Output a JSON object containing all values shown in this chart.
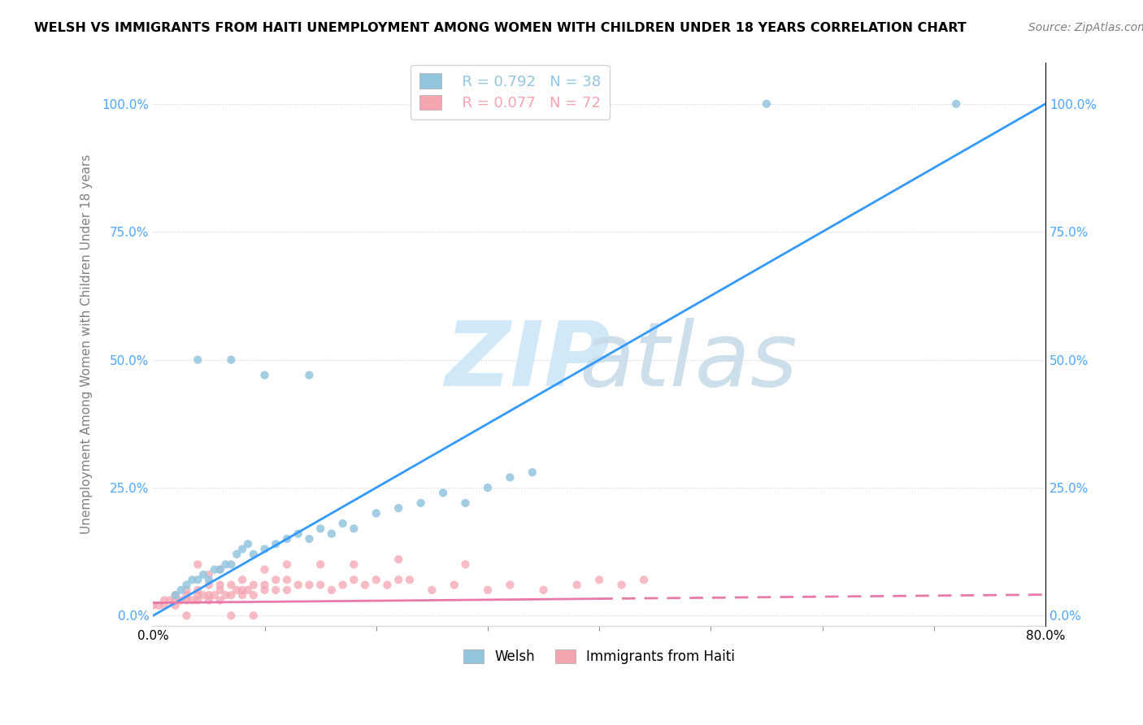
{
  "title": "WELSH VS IMMIGRANTS FROM HAITI UNEMPLOYMENT AMONG WOMEN WITH CHILDREN UNDER 18 YEARS CORRELATION CHART",
  "source": "Source: ZipAtlas.com",
  "ylabel": "Unemployment Among Women with Children Under 18 years",
  "ytick_labels": [
    "0.0%",
    "25.0%",
    "50.0%",
    "75.0%",
    "100.0%"
  ],
  "ytick_values": [
    0.0,
    0.25,
    0.5,
    0.75,
    1.0
  ],
  "xlim": [
    0.0,
    0.8
  ],
  "ylim": [
    -0.02,
    1.08
  ],
  "legend_labels": [
    "Welsh",
    "Immigrants from Haiti"
  ],
  "welsh_R": "R = 0.792",
  "welsh_N": "N = 38",
  "haiti_R": "R = 0.077",
  "haiti_N": "N = 72",
  "welsh_color": "#92c5de",
  "haiti_color": "#f4a5b0",
  "welsh_line_color": "#3399ff",
  "haiti_line_color": "#e87aaa",
  "welsh_line_x": [
    0.0,
    0.8
  ],
  "welsh_line_y": [
    0.0,
    1.0
  ],
  "haiti_line_x": [
    0.0,
    0.4,
    0.8
  ],
  "haiti_line_y": [
    0.025,
    0.033,
    0.041
  ],
  "watermark_zip": "ZIP",
  "watermark_atlas": "atlas",
  "welsh_scatter_x": [
    0.02,
    0.025,
    0.03,
    0.035,
    0.04,
    0.045,
    0.05,
    0.055,
    0.06,
    0.065,
    0.07,
    0.075,
    0.08,
    0.085,
    0.09,
    0.1,
    0.11,
    0.12,
    0.13,
    0.14,
    0.15,
    0.16,
    0.17,
    0.18,
    0.2,
    0.22,
    0.24,
    0.26,
    0.28,
    0.3,
    0.32,
    0.34,
    0.04,
    0.07,
    0.1,
    0.14,
    0.55,
    0.72
  ],
  "welsh_scatter_y": [
    0.04,
    0.05,
    0.06,
    0.07,
    0.07,
    0.08,
    0.07,
    0.09,
    0.09,
    0.1,
    0.1,
    0.12,
    0.13,
    0.14,
    0.12,
    0.13,
    0.14,
    0.15,
    0.16,
    0.15,
    0.17,
    0.16,
    0.18,
    0.17,
    0.2,
    0.21,
    0.22,
    0.24,
    0.22,
    0.25,
    0.27,
    0.28,
    0.5,
    0.5,
    0.47,
    0.47,
    1.0,
    1.0
  ],
  "haiti_scatter_x": [
    0.0,
    0.005,
    0.01,
    0.01,
    0.015,
    0.02,
    0.02,
    0.02,
    0.025,
    0.03,
    0.03,
    0.03,
    0.035,
    0.04,
    0.04,
    0.04,
    0.045,
    0.05,
    0.05,
    0.05,
    0.055,
    0.06,
    0.06,
    0.06,
    0.065,
    0.07,
    0.07,
    0.075,
    0.08,
    0.08,
    0.085,
    0.09,
    0.09,
    0.1,
    0.1,
    0.11,
    0.11,
    0.12,
    0.12,
    0.13,
    0.14,
    0.15,
    0.16,
    0.17,
    0.18,
    0.19,
    0.2,
    0.21,
    0.22,
    0.23,
    0.25,
    0.27,
    0.3,
    0.32,
    0.35,
    0.38,
    0.4,
    0.42,
    0.44,
    0.1,
    0.05,
    0.08,
    0.12,
    0.15,
    0.18,
    0.22,
    0.28,
    0.06,
    0.04,
    0.03,
    0.07,
    0.09
  ],
  "haiti_scatter_y": [
    0.02,
    0.02,
    0.02,
    0.03,
    0.03,
    0.02,
    0.03,
    0.04,
    0.03,
    0.03,
    0.04,
    0.05,
    0.03,
    0.03,
    0.04,
    0.05,
    0.04,
    0.03,
    0.04,
    0.06,
    0.04,
    0.03,
    0.05,
    0.06,
    0.04,
    0.04,
    0.06,
    0.05,
    0.04,
    0.05,
    0.05,
    0.04,
    0.06,
    0.05,
    0.06,
    0.05,
    0.07,
    0.05,
    0.07,
    0.06,
    0.06,
    0.06,
    0.05,
    0.06,
    0.07,
    0.06,
    0.07,
    0.06,
    0.07,
    0.07,
    0.05,
    0.06,
    0.05,
    0.06,
    0.05,
    0.06,
    0.07,
    0.06,
    0.07,
    0.09,
    0.08,
    0.07,
    0.1,
    0.1,
    0.1,
    0.11,
    0.1,
    0.09,
    0.1,
    0.0,
    0.0,
    0.0
  ]
}
